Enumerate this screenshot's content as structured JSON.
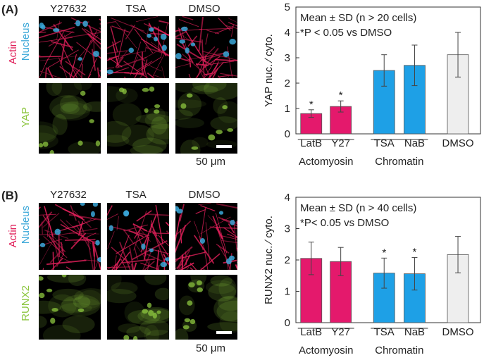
{
  "panels": [
    {
      "letter": "(A)",
      "columns": [
        "Y27632",
        "TSA",
        "DMSO"
      ],
      "row_labels": {
        "top_line1": "Actin",
        "top_line2": "Nucleus",
        "bottom": "YAP"
      },
      "scale_label": "50 μm",
      "colors": {
        "actin": "#e0205a",
        "nucleus": "#3aa7d8",
        "stain": "#8cc63f"
      }
    },
    {
      "letter": "(B)",
      "columns": [
        "Y27632",
        "TSA",
        "DMSO"
      ],
      "row_labels": {
        "top_line1": "Actin",
        "top_line2": "Nucleus",
        "bottom": "RUNX2"
      },
      "scale_label": "50 μm",
      "colors": {
        "actin": "#e0205a",
        "nucleus": "#3aa7d8",
        "stain": "#8cc63f"
      }
    }
  ],
  "chart_data": [
    {
      "type": "bar",
      "categories": [
        "LatB",
        "Y27",
        "TSA",
        "NaB",
        "DMSO"
      ],
      "values": [
        0.8,
        1.08,
        2.5,
        2.7,
        3.12
      ],
      "errors": [
        0.15,
        0.22,
        0.62,
        0.8,
        0.88
      ],
      "significant": [
        true,
        true,
        false,
        false,
        false
      ],
      "bar_colors": [
        "#e4196c",
        "#e4196c",
        "#1ea0e6",
        "#1ea0e6",
        "#eeeeee"
      ],
      "ylabel": "YAP nuc. ∕ cyto.",
      "ylim": [
        0,
        5
      ],
      "yticks": [
        "0",
        "1",
        "2",
        "3",
        "4",
        "5"
      ],
      "note_line1": "Mean ± SD   (n > 20 cells)",
      "note_line2": "*P < 0.05 vs DMSO",
      "significance_mark": "*",
      "groups": [
        {
          "label": "Actomyosin",
          "span": [
            0,
            1
          ]
        },
        {
          "label": "Chromatin",
          "span": [
            2,
            3
          ]
        }
      ]
    },
    {
      "type": "bar",
      "categories": [
        "LatB",
        "Y27",
        "TSA",
        "NaB",
        "DMSO"
      ],
      "values": [
        2.05,
        1.95,
        1.58,
        1.56,
        2.17
      ],
      "errors": [
        0.52,
        0.45,
        0.48,
        0.52,
        0.58
      ],
      "significant": [
        false,
        false,
        true,
        true,
        false
      ],
      "bar_colors": [
        "#e4196c",
        "#e4196c",
        "#1ea0e6",
        "#1ea0e6",
        "#eeeeee"
      ],
      "ylabel": "RUNX2 nuc. ∕ cyto.",
      "ylim": [
        0,
        4
      ],
      "yticks": [
        "0",
        "1",
        "2",
        "3",
        "4"
      ],
      "note_line1": "Mean ± SD   (n > 40 cells)",
      "note_line2": "*P< 0.05 vs DMSO",
      "significance_mark": "*",
      "groups": [
        {
          "label": "Actomyosin",
          "span": [
            0,
            1
          ]
        },
        {
          "label": "Chromatin",
          "span": [
            2,
            3
          ]
        }
      ]
    }
  ]
}
